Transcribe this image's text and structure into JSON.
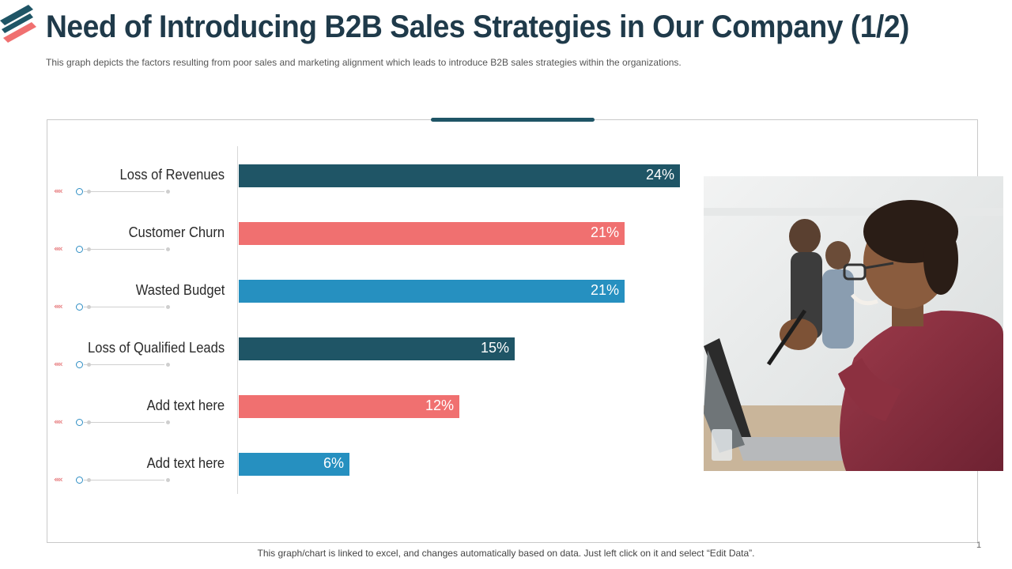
{
  "title": "Need of Introducing B2B Sales Strategies in Our Company (1/2)",
  "subtitle": "This graph depicts the factors resulting from poor sales and marketing alignment which leads to introduce B2B sales strategies within the organizations.",
  "footer": "This graph/chart is linked to excel, and changes automatically based on data. Just left click on it and select “Edit Data”.",
  "page_number": "1",
  "colors": {
    "dark_teal": "#1f5566",
    "coral": "#f07070",
    "blue": "#2690c0",
    "title": "#1f3a4a"
  },
  "chart_data": {
    "type": "bar",
    "orientation": "horizontal",
    "categories": [
      "Loss of Revenues",
      "Customer Churn",
      "Wasted Budget",
      "Loss of Qualified Leads",
      "Add text here",
      "Add text here"
    ],
    "values": [
      24,
      21,
      21,
      15,
      12,
      6
    ],
    "value_labels": [
      "24%",
      "21%",
      "21%",
      "15%",
      "12%",
      "6%"
    ],
    "bar_colors": [
      "#1f5566",
      "#f07070",
      "#2690c0",
      "#1f5566",
      "#f07070",
      "#2690c0"
    ],
    "xlim": [
      0,
      24
    ],
    "grid": false,
    "legend": "none"
  }
}
